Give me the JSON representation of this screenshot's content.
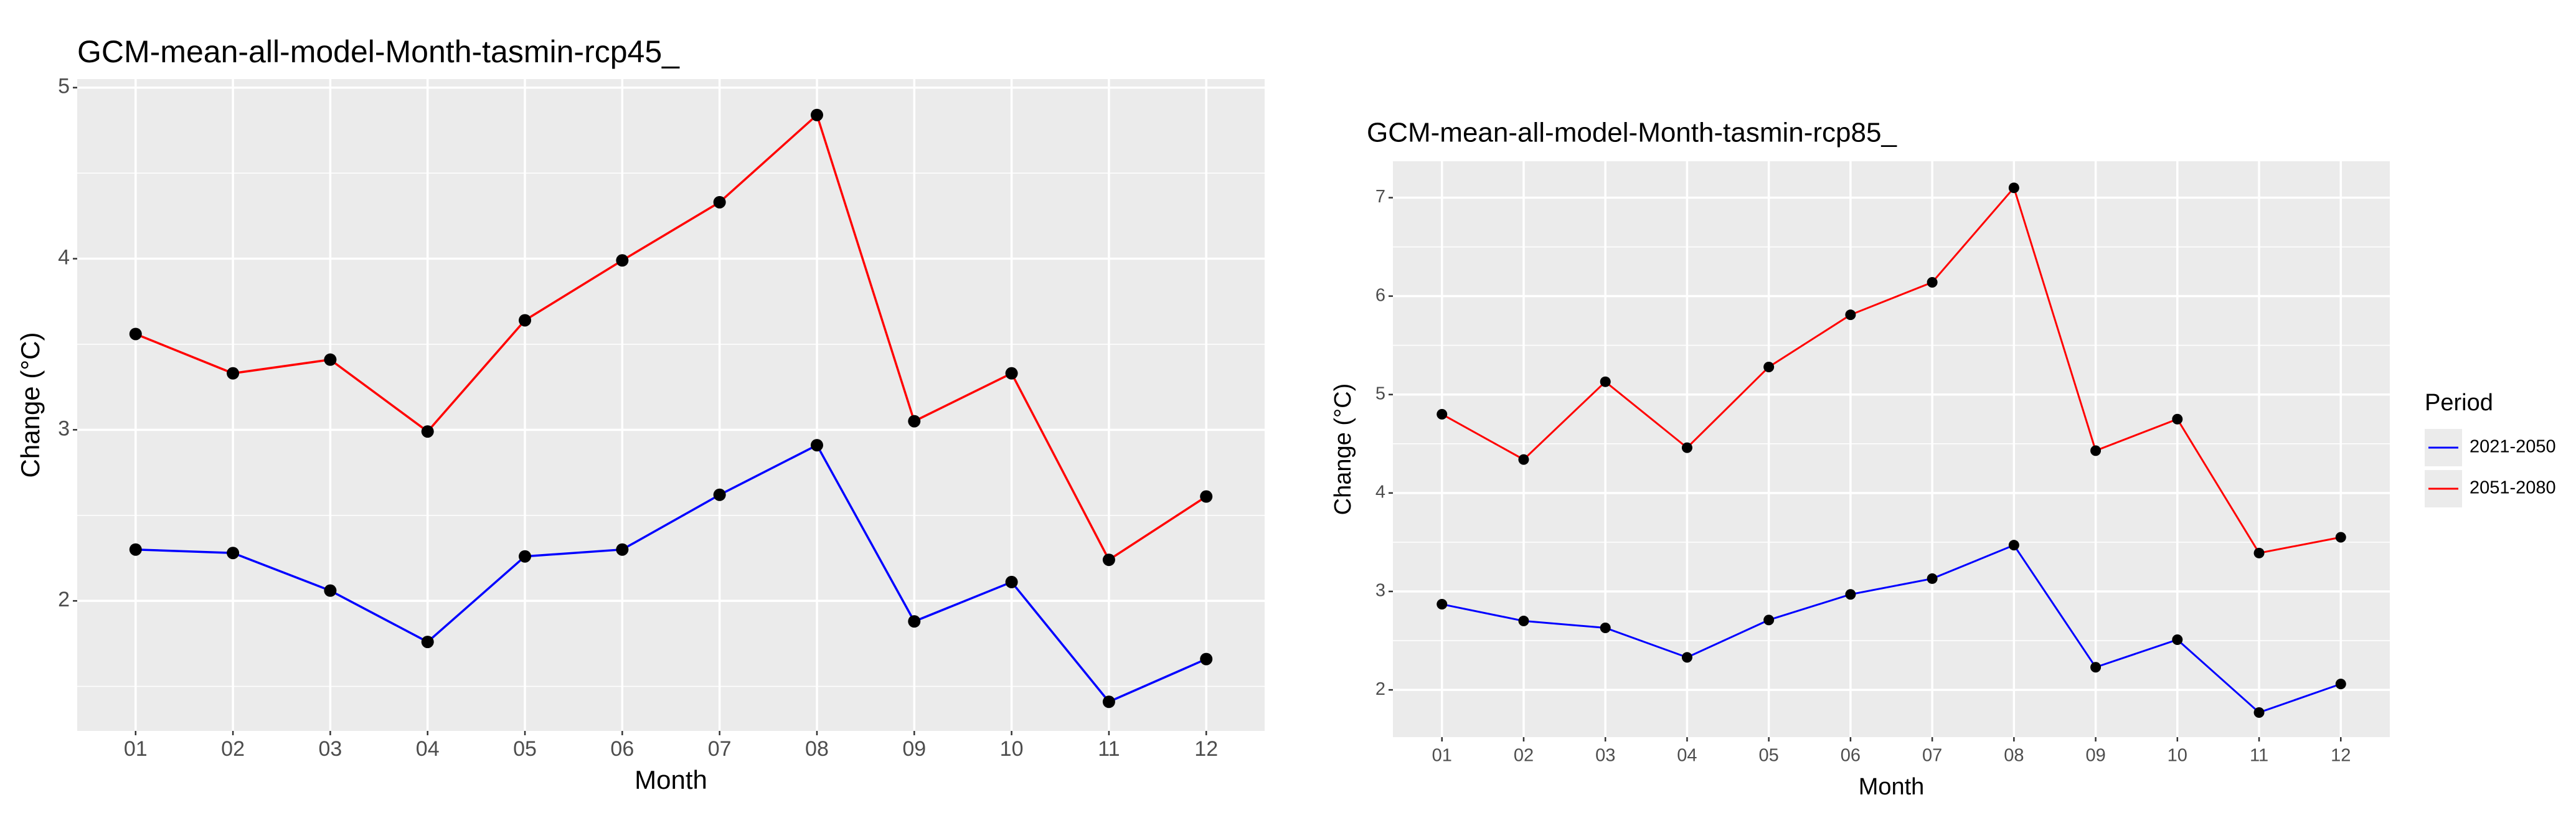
{
  "chart_data": [
    {
      "type": "line",
      "title": "GCM-mean-all-model-Month-tasmin-rcp45_",
      "x_label": "Month",
      "y_label": "Change (°C)",
      "categories": [
        "01",
        "02",
        "03",
        "04",
        "05",
        "06",
        "07",
        "08",
        "09",
        "10",
        "11",
        "12"
      ],
      "series": [
        {
          "color": "#0000ff",
          "values": [
            2.3,
            2.28,
            2.06,
            1.76,
            2.26,
            2.3,
            2.62,
            2.91,
            1.88,
            2.11,
            1.41,
            1.66
          ]
        },
        {
          "color": "#ff0000",
          "values": [
            3.56,
            3.33,
            3.41,
            2.99,
            3.64,
            3.99,
            4.33,
            4.84,
            3.05,
            3.33,
            2.24,
            2.61
          ]
        }
      ],
      "ylim": [
        1.24,
        5.05
      ],
      "yticks": [
        2,
        3,
        4,
        5
      ],
      "grid": true
    },
    {
      "type": "line",
      "title": "GCM-mean-all-model-Month-tasmin-rcp85_",
      "x_label": "Month",
      "y_label": "Change (°C)",
      "categories": [
        "01",
        "02",
        "03",
        "04",
        "05",
        "06",
        "07",
        "08",
        "09",
        "10",
        "11",
        "12"
      ],
      "series": [
        {
          "name": "2021-2050",
          "color": "#0000ff",
          "values": [
            2.87,
            2.7,
            2.63,
            2.33,
            2.71,
            2.97,
            3.13,
            3.47,
            2.23,
            2.51,
            1.77,
            2.06
          ]
        },
        {
          "name": "2051-2080",
          "color": "#ff0000",
          "values": [
            4.8,
            4.34,
            5.13,
            4.46,
            5.28,
            5.81,
            6.14,
            7.1,
            4.43,
            4.75,
            3.39,
            3.55
          ]
        }
      ],
      "ylim": [
        1.52,
        7.37
      ],
      "yticks": [
        2,
        3,
        4,
        5,
        6,
        7
      ],
      "grid": true,
      "legend": "right",
      "legend_title": "Period"
    }
  ]
}
